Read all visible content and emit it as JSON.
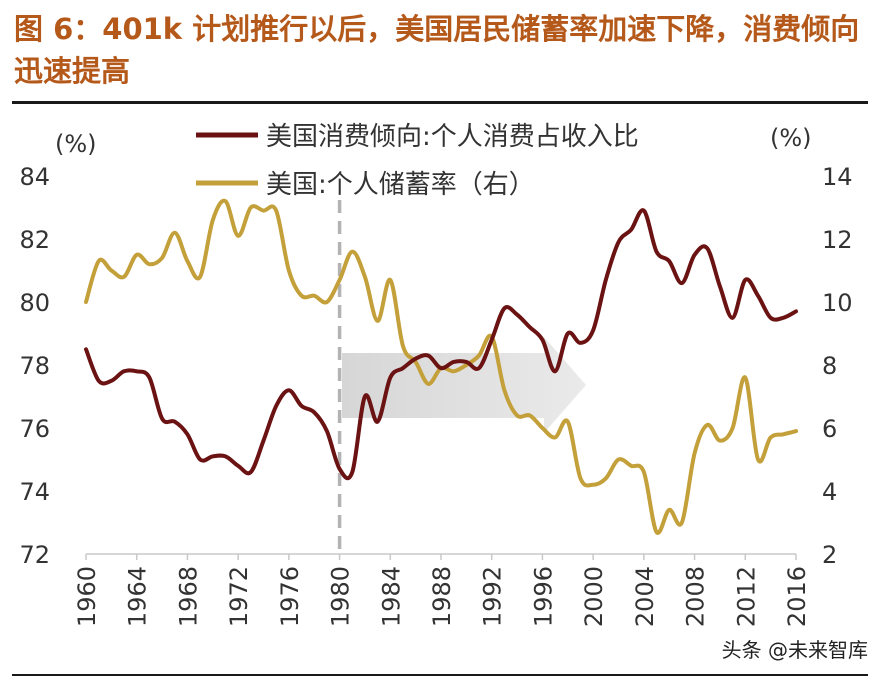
{
  "figure": {
    "title": "图 6：401k 计划推行以后，美国居民储蓄率加速下降，消费倾向迅速提高",
    "watermark": "头条 @未来智库"
  },
  "colors": {
    "title": "#b5591b",
    "consumption": "#6b1213",
    "savings": "#c4a03a",
    "arrow": "#d9d9d9",
    "divider": "#b3b3b3",
    "axis": "#999999",
    "text": "#333333"
  },
  "chart_data": {
    "type": "line",
    "left_axis": {
      "label": "(%)",
      "min": 72,
      "max": 84,
      "ticks": [
        84,
        82,
        80,
        78,
        76,
        74,
        72
      ]
    },
    "right_axis": {
      "label": "(%)",
      "min": 2,
      "max": 14,
      "ticks": [
        14,
        12,
        10,
        8,
        6,
        4,
        2
      ]
    },
    "x_axis": {
      "min": 1960,
      "max": 2016,
      "ticks": [
        "1960",
        "1964",
        "1968",
        "1972",
        "1976",
        "1980",
        "1984",
        "1988",
        "1992",
        "1996",
        "2000",
        "2004",
        "2008",
        "2012",
        "2016"
      ]
    },
    "divider_year": 1980,
    "series": [
      {
        "name": "美国消费倾向:个人消费占收入比",
        "axis": "left",
        "x": [
          1960,
          1961,
          1962,
          1963,
          1964,
          1965,
          1966,
          1967,
          1968,
          1969,
          1970,
          1971,
          1972,
          1973,
          1974,
          1975,
          1976,
          1977,
          1978,
          1979,
          1980,
          1981,
          1982,
          1983,
          1984,
          1985,
          1986,
          1987,
          1988,
          1989,
          1990,
          1991,
          1992,
          1993,
          1994,
          1995,
          1996,
          1997,
          1998,
          1999,
          2000,
          2001,
          2002,
          2003,
          2004,
          2005,
          2006,
          2007,
          2008,
          2009,
          2010,
          2011,
          2012,
          2013,
          2014,
          2015,
          2016
        ],
        "values": [
          78.5,
          77.5,
          77.5,
          77.8,
          77.8,
          77.6,
          76.3,
          76.2,
          75.8,
          75.0,
          75.1,
          75.1,
          74.8,
          74.6,
          75.6,
          76.7,
          77.2,
          76.7,
          76.5,
          75.9,
          74.7,
          74.6,
          77.0,
          76.2,
          77.6,
          77.9,
          78.2,
          78.3,
          77.9,
          78.1,
          78.1,
          77.9,
          78.8,
          79.8,
          79.6,
          79.2,
          78.8,
          77.8,
          79.0,
          78.7,
          79.1,
          80.7,
          81.9,
          82.3,
          82.9,
          81.6,
          81.3,
          80.6,
          81.5,
          81.7,
          80.5,
          79.5,
          80.7,
          80.2,
          79.5,
          79.5,
          79.7
        ]
      },
      {
        "name": "美国:个人储蓄率（右）",
        "axis": "right",
        "x": [
          1960,
          1961,
          1962,
          1963,
          1964,
          1965,
          1966,
          1967,
          1968,
          1969,
          1970,
          1971,
          1972,
          1973,
          1974,
          1975,
          1976,
          1977,
          1978,
          1979,
          1980,
          1981,
          1982,
          1983,
          1984,
          1985,
          1986,
          1987,
          1988,
          1989,
          1990,
          1991,
          1992,
          1993,
          1994,
          1995,
          1996,
          1997,
          1998,
          1999,
          2000,
          2001,
          2002,
          2003,
          2004,
          2005,
          2006,
          2007,
          2008,
          2009,
          2010,
          2011,
          2012,
          2013,
          2014,
          2015,
          2016
        ],
        "values": [
          10.0,
          11.3,
          11.0,
          10.8,
          11.5,
          11.2,
          11.4,
          12.2,
          11.3,
          10.8,
          12.6,
          13.2,
          12.1,
          13.0,
          12.9,
          12.9,
          11.0,
          10.2,
          10.2,
          10.0,
          10.7,
          11.6,
          10.8,
          9.4,
          10.7,
          8.6,
          8.1,
          7.4,
          7.9,
          7.8,
          8.0,
          8.3,
          8.9,
          7.2,
          6.4,
          6.4,
          6.0,
          5.7,
          6.2,
          4.4,
          4.2,
          4.4,
          5.0,
          4.8,
          4.6,
          2.7,
          3.4,
          3.0,
          5.2,
          6.1,
          5.6,
          6.0,
          7.6,
          5.0,
          5.7,
          5.8,
          5.9
        ]
      }
    ]
  }
}
